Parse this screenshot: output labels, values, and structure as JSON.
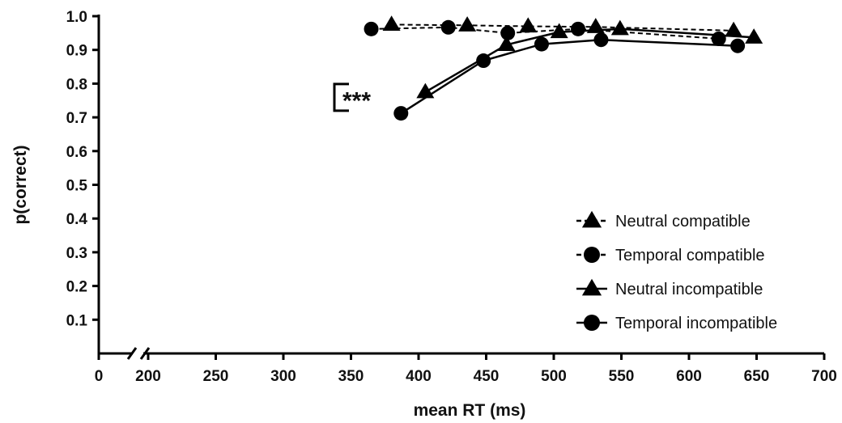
{
  "chart_data": {
    "type": "line",
    "title": "",
    "xlabel": "mean RT (ms)",
    "ylabel": "p(correct)",
    "xlim": [
      0,
      700
    ],
    "ylim": [
      0,
      1.0
    ],
    "x_axis_break": true,
    "x_ticks": [
      {
        "value": 0,
        "label": "0"
      },
      {
        "value": 200,
        "label": "200"
      },
      {
        "value": 250,
        "label": "250"
      },
      {
        "value": 300,
        "label": "300"
      },
      {
        "value": 350,
        "label": "350"
      },
      {
        "value": 400,
        "label": "400"
      },
      {
        "value": 450,
        "label": "450"
      },
      {
        "value": 500,
        "label": "500"
      },
      {
        "value": 550,
        "label": "550"
      },
      {
        "value": 600,
        "label": "600"
      },
      {
        "value": 650,
        "label": "650"
      },
      {
        "value": 700,
        "label": "700"
      }
    ],
    "y_ticks": [
      {
        "value": 0.1,
        "label": "0.1"
      },
      {
        "value": 0.2,
        "label": "0.2"
      },
      {
        "value": 0.3,
        "label": "0.3"
      },
      {
        "value": 0.4,
        "label": "0.4"
      },
      {
        "value": 0.5,
        "label": "0.5"
      },
      {
        "value": 0.6,
        "label": "0.6"
      },
      {
        "value": 0.7,
        "label": "0.7"
      },
      {
        "value": 0.8,
        "label": "0.8"
      },
      {
        "value": 0.9,
        "label": "0.9"
      },
      {
        "value": 1.0,
        "label": "1.0"
      }
    ],
    "grid": false,
    "legend_position": "bottom-right",
    "series": [
      {
        "name": "Neutral compatible",
        "marker": "triangle",
        "line": "dashed",
        "points": [
          {
            "x": 380,
            "y": 0.975
          },
          {
            "x": 436,
            "y": 0.973
          },
          {
            "x": 481,
            "y": 0.97
          },
          {
            "x": 531,
            "y": 0.968
          },
          {
            "x": 633,
            "y": 0.957
          }
        ]
      },
      {
        "name": "Temporal compatible",
        "marker": "circle",
        "line": "dashed",
        "points": [
          {
            "x": 365,
            "y": 0.962
          },
          {
            "x": 422,
            "y": 0.967
          },
          {
            "x": 466,
            "y": 0.95
          },
          {
            "x": 518,
            "y": 0.962
          },
          {
            "x": 622,
            "y": 0.933
          }
        ]
      },
      {
        "name": "Neutral incompatible",
        "marker": "triangle",
        "line": "solid",
        "points": [
          {
            "x": 405,
            "y": 0.775
          },
          {
            "x": 465,
            "y": 0.915
          },
          {
            "x": 504,
            "y": 0.953
          },
          {
            "x": 549,
            "y": 0.962
          },
          {
            "x": 648,
            "y": 0.937
          }
        ]
      },
      {
        "name": "Temporal incompatible",
        "marker": "circle",
        "line": "solid",
        "points": [
          {
            "x": 387,
            "y": 0.712
          },
          {
            "x": 448,
            "y": 0.868
          },
          {
            "x": 491,
            "y": 0.917
          },
          {
            "x": 535,
            "y": 0.93
          },
          {
            "x": 636,
            "y": 0.912
          }
        ]
      }
    ],
    "annotations": [
      {
        "text": "***",
        "type": "significance-bracket",
        "y_range": [
          0.71,
          0.77
        ]
      }
    ]
  }
}
